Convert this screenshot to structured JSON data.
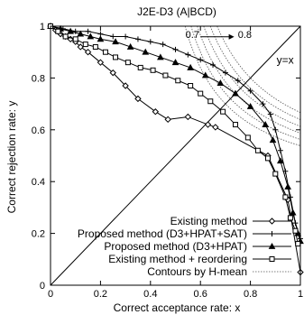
{
  "chart_data": {
    "type": "line",
    "title": "J2E-D3 (A|BCD)",
    "xlabel": "Correct acceptance rate: x",
    "ylabel": "Correct rejection rate: y",
    "xlim": [
      0,
      1
    ],
    "ylim": [
      0,
      1
    ],
    "xticks": [
      "0",
      "0.2",
      "0.4",
      "0.6",
      "0.8",
      "1"
    ],
    "yticks": [
      "0",
      "0.2",
      "0.4",
      "0.6",
      "0.8",
      "1"
    ],
    "legend_position": "bottom-right",
    "grid": false,
    "diagonal": {
      "label": "y=x"
    },
    "contours": {
      "name": "Contours by H-mean",
      "levels": [
        0.7,
        0.72,
        0.74,
        0.76,
        0.78,
        0.8
      ],
      "label_low": "0.7",
      "label_high": "0.8"
    },
    "series": [
      {
        "name": "Existing method",
        "marker": "diamond",
        "points": [
          [
            0.0,
            1.0
          ],
          [
            0.02,
            0.985
          ],
          [
            0.04,
            0.97
          ],
          [
            0.06,
            0.96
          ],
          [
            0.08,
            0.95
          ],
          [
            0.1,
            0.94
          ],
          [
            0.12,
            0.92
          ],
          [
            0.15,
            0.9
          ],
          [
            0.2,
            0.86
          ],
          [
            0.25,
            0.82
          ],
          [
            0.3,
            0.77
          ],
          [
            0.35,
            0.72
          ],
          [
            0.42,
            0.67
          ],
          [
            0.47,
            0.64
          ],
          [
            0.55,
            0.65
          ],
          [
            0.63,
            0.62
          ],
          [
            0.66,
            0.61
          ],
          [
            0.87,
            0.5
          ],
          [
            0.95,
            0.33
          ],
          [
            1.0,
            0.05
          ]
        ]
      },
      {
        "name": "Proposed method (D3+HPAT+SAT)",
        "marker": "plus",
        "points": [
          [
            0.0,
            1.0
          ],
          [
            0.05,
            0.99
          ],
          [
            0.1,
            0.98
          ],
          [
            0.15,
            0.98
          ],
          [
            0.2,
            0.97
          ],
          [
            0.25,
            0.96
          ],
          [
            0.3,
            0.96
          ],
          [
            0.35,
            0.95
          ],
          [
            0.4,
            0.94
          ],
          [
            0.45,
            0.93
          ],
          [
            0.5,
            0.91
          ],
          [
            0.55,
            0.89
          ],
          [
            0.6,
            0.87
          ],
          [
            0.65,
            0.85
          ],
          [
            0.7,
            0.82
          ],
          [
            0.75,
            0.79
          ],
          [
            0.8,
            0.75
          ],
          [
            0.85,
            0.7
          ],
          [
            0.88,
            0.66
          ],
          [
            0.9,
            0.6
          ],
          [
            0.92,
            0.52
          ],
          [
            0.94,
            0.44
          ],
          [
            0.96,
            0.34
          ],
          [
            0.98,
            0.24
          ],
          [
            1.0,
            0.18
          ]
        ]
      },
      {
        "name": "Proposed method (D3+HPAT)",
        "marker": "triangle",
        "points": [
          [
            0.0,
            1.0
          ],
          [
            0.04,
            0.99
          ],
          [
            0.08,
            0.98
          ],
          [
            0.12,
            0.97
          ],
          [
            0.16,
            0.96
          ],
          [
            0.2,
            0.95
          ],
          [
            0.26,
            0.94
          ],
          [
            0.32,
            0.92
          ],
          [
            0.38,
            0.9
          ],
          [
            0.44,
            0.88
          ],
          [
            0.5,
            0.86
          ],
          [
            0.56,
            0.84
          ],
          [
            0.62,
            0.81
          ],
          [
            0.68,
            0.78
          ],
          [
            0.74,
            0.74
          ],
          [
            0.8,
            0.69
          ],
          [
            0.86,
            0.62
          ],
          [
            0.89,
            0.56
          ],
          [
            0.92,
            0.48
          ],
          [
            0.95,
            0.38
          ],
          [
            0.97,
            0.28
          ],
          [
            0.99,
            0.2
          ],
          [
            1.0,
            0.17
          ]
        ]
      },
      {
        "name": "Existing method + reordering",
        "marker": "square",
        "points": [
          [
            0.0,
            1.0
          ],
          [
            0.03,
            0.98
          ],
          [
            0.06,
            0.96
          ],
          [
            0.1,
            0.95
          ],
          [
            0.14,
            0.93
          ],
          [
            0.18,
            0.92
          ],
          [
            0.22,
            0.9
          ],
          [
            0.26,
            0.88
          ],
          [
            0.31,
            0.86
          ],
          [
            0.36,
            0.84
          ],
          [
            0.41,
            0.83
          ],
          [
            0.46,
            0.81
          ],
          [
            0.51,
            0.79
          ],
          [
            0.56,
            0.77
          ],
          [
            0.6,
            0.74
          ],
          [
            0.64,
            0.71
          ],
          [
            0.69,
            0.67
          ],
          [
            0.74,
            0.62
          ],
          [
            0.79,
            0.57
          ],
          [
            0.83,
            0.52
          ],
          [
            0.87,
            0.49
          ],
          [
            0.9,
            0.43
          ],
          [
            0.94,
            0.34
          ],
          [
            0.96,
            0.26
          ],
          [
            0.98,
            0.21
          ],
          [
            0.99,
            0.16
          ]
        ]
      }
    ]
  }
}
